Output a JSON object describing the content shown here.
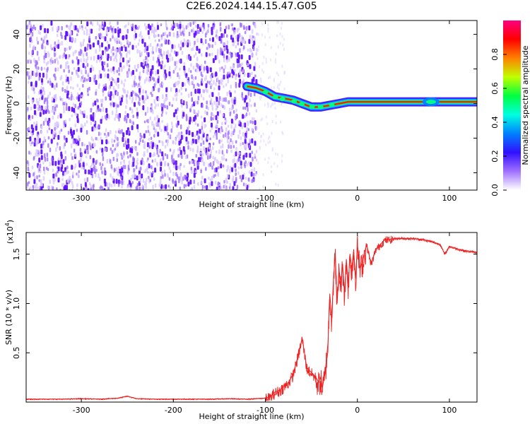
{
  "title": "C2E6.2024.144.15.47.G05",
  "chart_data": [
    {
      "type": "heatmap",
      "xlabel": "Height of straight line (km)",
      "ylabel": "Frequency (Hz)",
      "xlim": [
        -360,
        130
      ],
      "ylim": [
        -50,
        48
      ],
      "x_ticks": [
        -300,
        -200,
        -100,
        0,
        100
      ],
      "y_ticks": [
        -40,
        -20,
        0,
        20,
        40
      ],
      "colorbar": {
        "label": "Normalized spectral amplitude",
        "range": [
          0,
          1
        ],
        "ticks": [
          "0.0",
          "0.2",
          "0.4",
          "0.6",
          "0.8"
        ],
        "tick_values": [
          0,
          0.2,
          0.4,
          0.6,
          0.8
        ],
        "colormap": [
          "#ffffff",
          "#a070ff",
          "#3010ff",
          "#0080ff",
          "#00ffe0",
          "#00ff40",
          "#c0ff00",
          "#ff8000",
          "#ff0000",
          "#ff0080"
        ]
      },
      "noise_region": {
        "x_range": [
          -360,
          -110
        ],
        "color": "#7a00ff"
      },
      "signal_trace": {
        "x": [
          -120,
          -110,
          -100,
          -90,
          -80,
          -70,
          -60,
          -50,
          -40,
          -30,
          -20,
          -10,
          0,
          20,
          40,
          60,
          80,
          90,
          100,
          130
        ],
        "y": [
          10,
          9,
          7,
          4,
          3,
          2,
          0,
          -2,
          -2,
          -1,
          0,
          1,
          1,
          1,
          1,
          1,
          1,
          1,
          1,
          1
        ]
      },
      "grid": false
    },
    {
      "type": "line",
      "xlabel": "Height of straight line (km)",
      "ylabel": "SNR (10 * v/v)",
      "y_multiplier": "(x10",
      "y_multiplier_exp": "4",
      "xlim": [
        -360,
        130
      ],
      "ylim": [
        0,
        1.72
      ],
      "x_ticks": [
        -300,
        -200,
        -100,
        0,
        100
      ],
      "y_ticks": [
        "0.5",
        "1.0",
        "1.5"
      ],
      "y_tick_values": [
        0.5,
        1.0,
        1.5
      ],
      "line_color": "#ee2222",
      "series": [
        {
          "x": [
            -360,
            -340,
            -320,
            -300,
            -280,
            -260,
            -250,
            -240,
            -220,
            -200,
            -180,
            -160,
            -140,
            -120,
            -110,
            -100,
            -95,
            -90,
            -85,
            -80,
            -75,
            -70,
            -65,
            -60,
            -55,
            -50,
            -45,
            -42,
            -40,
            -38,
            -35,
            -32,
            -30,
            -28,
            -26,
            -24,
            -22,
            -20,
            -18,
            -16,
            -14,
            -12,
            -10,
            -8,
            -6,
            -4,
            -2,
            0,
            3,
            6,
            10,
            15,
            20,
            25,
            30,
            35,
            40,
            50,
            60,
            70,
            80,
            90,
            95,
            100,
            110,
            120,
            130
          ],
          "y": [
            0.03,
            0.03,
            0.03,
            0.035,
            0.03,
            0.04,
            0.06,
            0.035,
            0.03,
            0.03,
            0.03,
            0.03,
            0.035,
            0.03,
            0.035,
            0.04,
            0.05,
            0.1,
            0.12,
            0.16,
            0.2,
            0.28,
            0.45,
            0.65,
            0.35,
            0.3,
            0.25,
            0.2,
            0.25,
            0.15,
            0.3,
            0.6,
            1.1,
            0.85,
            1.25,
            1.5,
            1.0,
            1.35,
            1.2,
            1.4,
            1.1,
            1.45,
            1.2,
            1.5,
            1.35,
            1.55,
            1.25,
            1.6,
            1.35,
            1.45,
            1.6,
            1.4,
            1.55,
            1.6,
            1.65,
            1.65,
            1.66,
            1.66,
            1.66,
            1.65,
            1.63,
            1.6,
            1.5,
            1.58,
            1.55,
            1.53,
            1.52
          ]
        }
      ],
      "grid": false
    }
  ]
}
